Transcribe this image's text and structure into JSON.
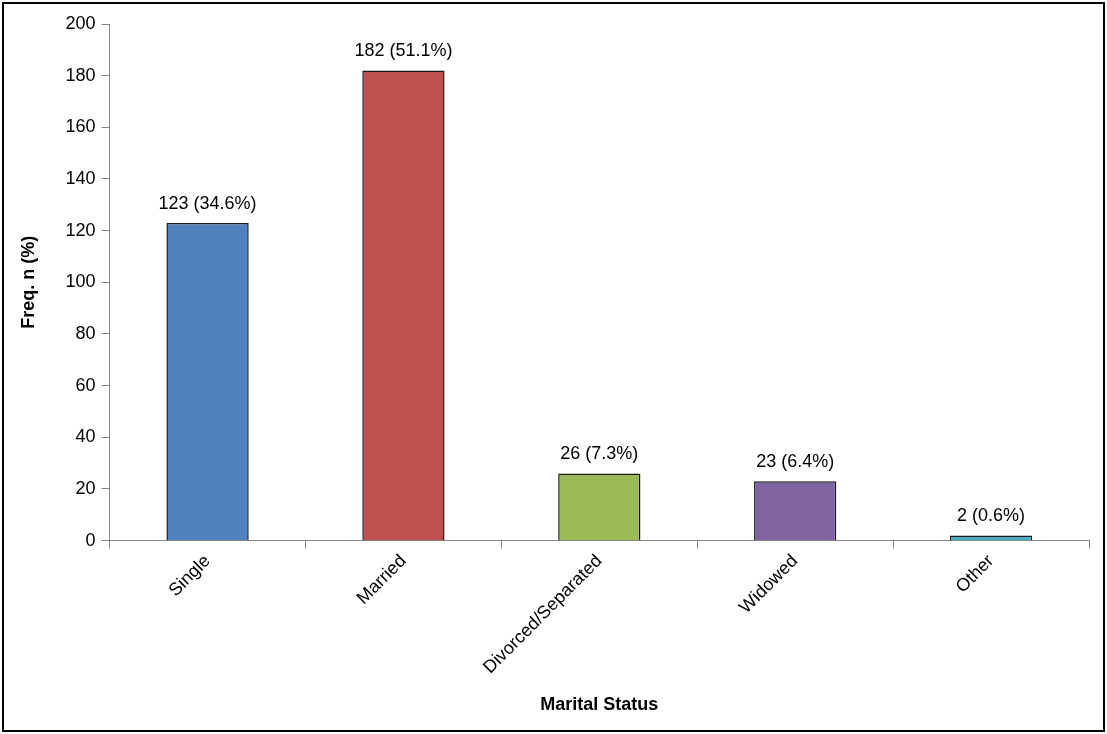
{
  "chart_data": {
    "type": "bar",
    "xlabel": "Marital Status",
    "ylabel": "Freq. n (%)",
    "categories": [
      "Single",
      "Married",
      "Divorced/Separated",
      "Widowed",
      "Other"
    ],
    "values": [
      123,
      182,
      26,
      23,
      2
    ],
    "colors": [
      "#4f81bd",
      "#c0504d",
      "#9bbb59",
      "#8064a2",
      "#4bacc6"
    ],
    "value_labels": [
      "123 (34.6%)",
      "182 (51.1%)",
      "26 (7.3%)",
      "23 (6.4%)",
      "2 (0.6%)"
    ],
    "ylim": [
      0,
      200
    ],
    "yticks": [
      0,
      20,
      40,
      60,
      80,
      100,
      120,
      140,
      160,
      180,
      200
    ],
    "grid": false,
    "legend": false
  }
}
